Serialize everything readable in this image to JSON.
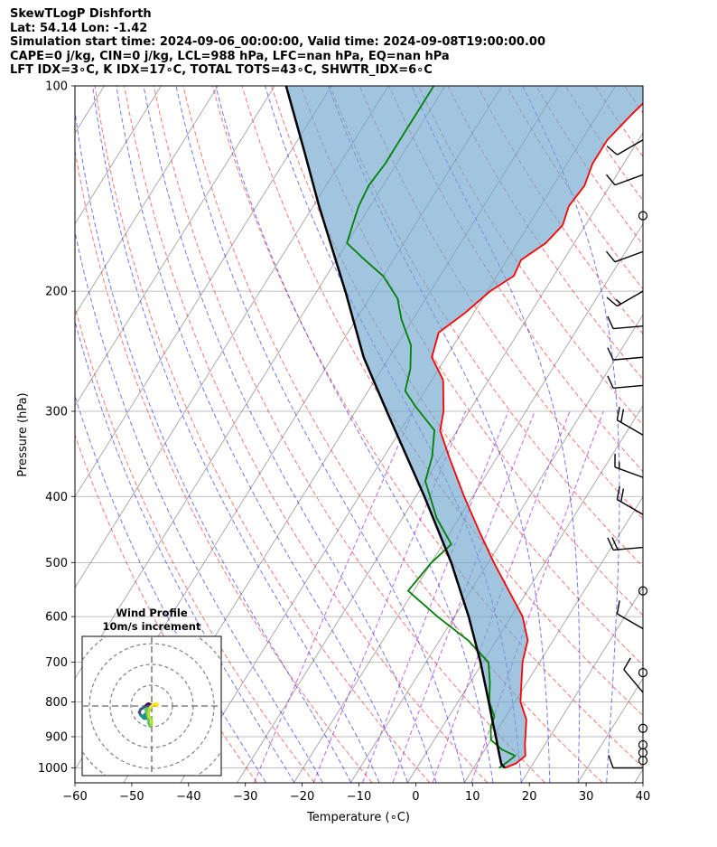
{
  "header": {
    "line1": "SkewTLogP Dishforth",
    "line2": "Lat: 54.14   Lon: -1.42",
    "line3": "Simulation start time: 2024-09-06_00:00:00, Valid time: 2024-09-08T19:00:00.00",
    "line4": "CAPE=0 j/kg, CIN=0 j/kg, LCL=988 hPa, LFC=nan hPa, EQ=nan hPa",
    "line5": "LFT IDX=3∘C, K IDX=17∘C, TOTAL TOTS=43∘C, SHWTR_IDX=6∘C"
  },
  "chart_data": {
    "type": "skew-t log-p",
    "xlabel": "Temperature (∘C)",
    "ylabel": "Pressure (hPa)",
    "xlim": [
      -60,
      40
    ],
    "ylim": [
      1050,
      100
    ],
    "y_scale": "log",
    "skew_deg_per_decade": 75,
    "x_ticks": [
      -60,
      -50,
      -40,
      -30,
      -20,
      -10,
      0,
      10,
      20,
      30,
      40
    ],
    "x_tick_labels": [
      "−60",
      "−50",
      "−40",
      "−30",
      "−20",
      "−10",
      "0",
      "10",
      "20",
      "30",
      "40"
    ],
    "y_ticks": [
      1000,
      900,
      800,
      700,
      600,
      500,
      400,
      300,
      200,
      100
    ],
    "y_tick_labels": [
      "1000",
      "900",
      "800",
      "700",
      "600",
      "500",
      "400",
      "300",
      "200",
      "100"
    ],
    "grid": true,
    "colors": {
      "temperature": "#ff0000",
      "dewpoint": "#008000",
      "parcel": "#000000",
      "cape_fill": "#6ea6cd",
      "dry_adiabats": "#ff0000",
      "moist_adiabats": "#0000ff",
      "mixing_ratio": "#9400d3",
      "isotherms": "#999999",
      "isobars": "#aaaaaa"
    },
    "temperature_profile": [
      {
        "p": 1000,
        "t": 15.5
      },
      {
        "p": 985,
        "t": 17.0
      },
      {
        "p": 960,
        "t": 17.8
      },
      {
        "p": 925,
        "t": 16.5
      },
      {
        "p": 850,
        "t": 14.0
      },
      {
        "p": 800,
        "t": 11.0
      },
      {
        "p": 700,
        "t": 7.0
      },
      {
        "p": 650,
        "t": 5.5
      },
      {
        "p": 600,
        "t": 2.0
      },
      {
        "p": 500,
        "t": -9.0
      },
      {
        "p": 450,
        "t": -15.0
      },
      {
        "p": 400,
        "t": -21.5
      },
      {
        "p": 350,
        "t": -28.5
      },
      {
        "p": 320,
        "t": -33.0
      },
      {
        "p": 300,
        "t": -34.5
      },
      {
        "p": 270,
        "t": -38.0
      },
      {
        "p": 250,
        "t": -42.5
      },
      {
        "p": 230,
        "t": -44.0
      },
      {
        "p": 215,
        "t": -41.5
      },
      {
        "p": 200,
        "t": -39.5
      },
      {
        "p": 190,
        "t": -37.0
      },
      {
        "p": 180,
        "t": -37.5
      },
      {
        "p": 170,
        "t": -35.0
      },
      {
        "p": 160,
        "t": -34.0
      },
      {
        "p": 150,
        "t": -35.0
      },
      {
        "p": 140,
        "t": -34.5
      },
      {
        "p": 130,
        "t": -35.5
      },
      {
        "p": 120,
        "t": -35.5
      },
      {
        "p": 110,
        "t": -34.0
      },
      {
        "p": 100,
        "t": -32.0
      }
    ],
    "dewpoint_profile": [
      {
        "p": 1000,
        "t": 14.5
      },
      {
        "p": 975,
        "t": 15.5
      },
      {
        "p": 960,
        "t": 16.0
      },
      {
        "p": 940,
        "t": 13.0
      },
      {
        "p": 910,
        "t": 10.0
      },
      {
        "p": 870,
        "t": 8.5
      },
      {
        "p": 840,
        "t": 8.0
      },
      {
        "p": 800,
        "t": 5.5
      },
      {
        "p": 750,
        "t": 3.5
      },
      {
        "p": 700,
        "t": 1.0
      },
      {
        "p": 650,
        "t": -5.0
      },
      {
        "p": 600,
        "t": -13.0
      },
      {
        "p": 550,
        "t": -21.0
      },
      {
        "p": 500,
        "t": -20.0
      },
      {
        "p": 470,
        "t": -18.5
      },
      {
        "p": 430,
        "t": -24.0
      },
      {
        "p": 400,
        "t": -27.5
      },
      {
        "p": 380,
        "t": -30.0
      },
      {
        "p": 350,
        "t": -31.5
      },
      {
        "p": 320,
        "t": -34.0
      },
      {
        "p": 295,
        "t": -40.0
      },
      {
        "p": 280,
        "t": -43.5
      },
      {
        "p": 260,
        "t": -45.0
      },
      {
        "p": 240,
        "t": -47.5
      },
      {
        "p": 220,
        "t": -52.0
      },
      {
        "p": 205,
        "t": -55.0
      },
      {
        "p": 190,
        "t": -60.0
      },
      {
        "p": 180,
        "t": -65.0
      },
      {
        "p": 170,
        "t": -70.0
      },
      {
        "p": 160,
        "t": -71.0
      },
      {
        "p": 150,
        "t": -72.0
      },
      {
        "p": 140,
        "t": -72.5
      },
      {
        "p": 130,
        "t": -72.0
      },
      {
        "p": 120,
        "t": -72.0
      },
      {
        "p": 110,
        "t": -72.0
      },
      {
        "p": 100,
        "t": -72.0
      }
    ],
    "parcel_profile": [
      {
        "p": 1000,
        "t": 15.5
      },
      {
        "p": 988,
        "t": 14.5
      },
      {
        "p": 950,
        "t": 12.8
      },
      {
        "p": 900,
        "t": 10.5
      },
      {
        "p": 850,
        "t": 8.0
      },
      {
        "p": 800,
        "t": 5.4
      },
      {
        "p": 700,
        "t": -0.4
      },
      {
        "p": 600,
        "t": -7.5
      },
      {
        "p": 500,
        "t": -16.5
      },
      {
        "p": 400,
        "t": -28.5
      },
      {
        "p": 300,
        "t": -44.5
      },
      {
        "p": 250,
        "t": -54.5
      },
      {
        "p": 200,
        "t": -65.0
      },
      {
        "p": 150,
        "t": -79.0
      },
      {
        "p": 125,
        "t": -87.5
      },
      {
        "p": 100,
        "t": -98.0
      }
    ],
    "dry_adiabats_theta_c": [
      -30,
      -20,
      -10,
      0,
      10,
      20,
      30,
      40,
      50,
      60,
      70,
      80,
      90,
      100,
      110,
      120,
      130,
      140,
      150,
      160,
      170,
      180,
      190,
      200
    ],
    "moist_adiabats_start_t_c": [
      -25,
      -20,
      -15,
      -10,
      -5,
      0,
      5,
      10,
      15,
      20,
      25,
      30,
      35
    ],
    "mixing_ratio_lines_gkg": [
      0.4,
      1,
      2,
      3,
      5,
      8
    ],
    "wind_barbs": [
      {
        "p": 1000,
        "speed_kt": 10,
        "dir_deg": 270
      },
      {
        "p": 975,
        "speed_kt": 0,
        "dir_deg": 0
      },
      {
        "p": 950,
        "speed_kt": 0,
        "dir_deg": 0
      },
      {
        "p": 925,
        "speed_kt": 0,
        "dir_deg": 0
      },
      {
        "p": 875,
        "speed_kt": 0,
        "dir_deg": 0
      },
      {
        "p": 775,
        "speed_kt": 10,
        "dir_deg": 320
      },
      {
        "p": 725,
        "speed_kt": 0,
        "dir_deg": 0
      },
      {
        "p": 625,
        "speed_kt": 10,
        "dir_deg": 300
      },
      {
        "p": 550,
        "speed_kt": 0,
        "dir_deg": 0
      },
      {
        "p": 475,
        "speed_kt": 20,
        "dir_deg": 265
      },
      {
        "p": 425,
        "speed_kt": 20,
        "dir_deg": 300
      },
      {
        "p": 375,
        "speed_kt": 15,
        "dir_deg": 290
      },
      {
        "p": 325,
        "speed_kt": 20,
        "dir_deg": 300
      },
      {
        "p": 275,
        "speed_kt": 10,
        "dir_deg": 265
      },
      {
        "p": 250,
        "speed_kt": 10,
        "dir_deg": 265
      },
      {
        "p": 225,
        "speed_kt": 10,
        "dir_deg": 265
      },
      {
        "p": 200,
        "speed_kt": 15,
        "dir_deg": 240
      },
      {
        "p": 175,
        "speed_kt": 10,
        "dir_deg": 250
      },
      {
        "p": 155,
        "speed_kt": 0,
        "dir_deg": 0
      },
      {
        "p": 135,
        "speed_kt": 10,
        "dir_deg": 250
      },
      {
        "p": 120,
        "speed_kt": 10,
        "dir_deg": 240
      }
    ],
    "hodograph": {
      "title": "Wind Profile",
      "subtitle": "10m/s increment",
      "ring_increment_ms": 10,
      "rings": 3,
      "trace_uv": [
        [
          -2.0,
          0.0
        ],
        [
          -1.5,
          0.5
        ],
        [
          -1.0,
          0.7
        ],
        [
          -0.5,
          0.5
        ],
        [
          0.0,
          0.2
        ],
        [
          -2.5,
          -0.5
        ],
        [
          -3.5,
          -1.0
        ],
        [
          -4.0,
          -2.0
        ],
        [
          -3.5,
          -3.0
        ],
        [
          -2.5,
          -3.5
        ],
        [
          -1.5,
          -3.0
        ],
        [
          -2.0,
          -2.5
        ],
        [
          -2.5,
          -3.0
        ],
        [
          -3.0,
          -3.5
        ],
        [
          -2.5,
          -4.0
        ],
        [
          -1.5,
          -4.0
        ],
        [
          -1.0,
          -3.0
        ],
        [
          -1.0,
          -1.5
        ],
        [
          -1.5,
          -0.8
        ],
        [
          -2.0,
          -1.0
        ],
        [
          -1.5,
          -2.5
        ],
        [
          -1.0,
          -4.0
        ],
        [
          -1.0,
          -5.5
        ],
        [
          -0.5,
          -6.5
        ],
        [
          0.0,
          -6.0
        ],
        [
          0.0,
          -4.5
        ],
        [
          -1.0,
          -3.5
        ],
        [
          -1.0,
          -2.0
        ],
        [
          -0.5,
          -0.5
        ],
        [
          0.5,
          0.5
        ],
        [
          1.5,
          0.8
        ],
        [
          2.0,
          0.5
        ],
        [
          1.5,
          0.2
        ]
      ]
    }
  }
}
